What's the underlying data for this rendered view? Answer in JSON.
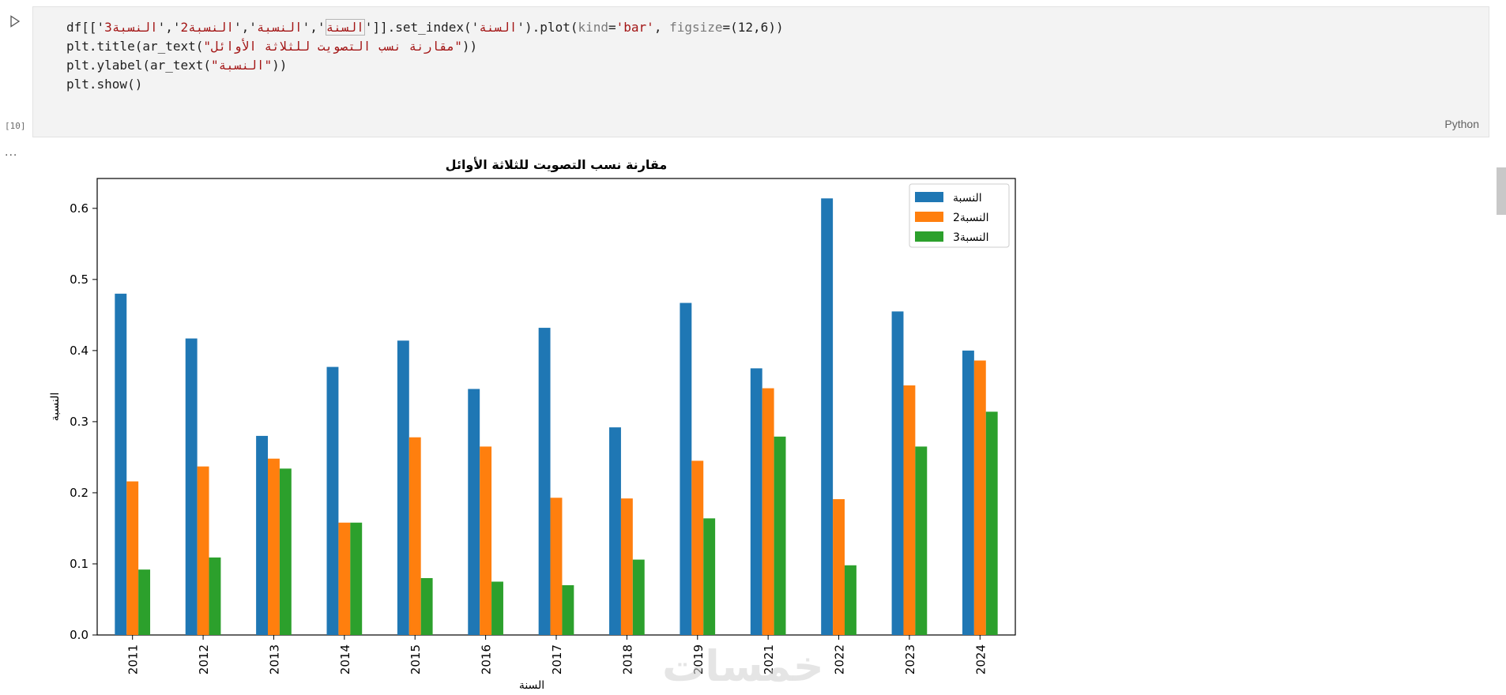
{
  "cell": {
    "execution_count": "[10]",
    "language": "Python",
    "output_more": "...",
    "code": {
      "l1_a": "df[['",
      "l1_s1": "السنة",
      "l1_b": "','",
      "l1_s2": "النسبة",
      "l1_c": "','",
      "l1_s3": "النسبة2",
      "l1_d": "','",
      "l1_s4": "النسبة3",
      "l1_e": "']].set_index('",
      "l1_s5": "السنة",
      "l1_f": "').plot(",
      "l1_k1": "kind",
      "l1_g": "=",
      "l1_s6": "'bar'",
      "l1_h": ", ",
      "l1_k2": "figsize",
      "l1_i": "=(12,6))",
      "l2_a": "plt.title(ar_text(",
      "l2_s": "\"مقارنة نسب التصويت للثلاثة الأوائل\"",
      "l2_b": "))",
      "l3_a": "plt.ylabel(ar_text(",
      "l3_s": "\"النسبة\"",
      "l3_b": "))",
      "l4": "plt.show()"
    }
  },
  "watermark": "خمسات",
  "chart_data": {
    "type": "bar",
    "title": "مقارنة نسب التصويت للثلاثة الأوائل",
    "xlabel": "السنة",
    "ylabel": "النسبة",
    "categories": [
      "2011",
      "2012",
      "2013",
      "2014",
      "2015",
      "2016",
      "2017",
      "2018",
      "2019",
      "2021",
      "2022",
      "2023",
      "2024"
    ],
    "series": [
      {
        "name": "النسبة",
        "color": "#1f77b4",
        "values": [
          0.48,
          0.417,
          0.28,
          0.377,
          0.414,
          0.346,
          0.432,
          0.292,
          0.467,
          0.375,
          0.614,
          0.455,
          0.4
        ]
      },
      {
        "name": "النسبة2",
        "color": "#ff7f0e",
        "values": [
          0.216,
          0.237,
          0.248,
          0.158,
          0.278,
          0.265,
          0.193,
          0.192,
          0.245,
          0.347,
          0.191,
          0.351,
          0.386
        ]
      },
      {
        "name": "النسبة3",
        "color": "#2ca02c",
        "values": [
          0.092,
          0.109,
          0.234,
          0.158,
          0.08,
          0.075,
          0.07,
          0.106,
          0.164,
          0.279,
          0.098,
          0.265,
          0.314
        ]
      }
    ],
    "ylim": [
      0,
      0.642
    ],
    "yticks": [
      "0.0",
      "0.1",
      "0.2",
      "0.3",
      "0.4",
      "0.5",
      "0.6"
    ],
    "ytick_values": [
      0,
      0.1,
      0.2,
      0.3,
      0.4,
      0.5,
      0.6
    ],
    "grid": false,
    "legend": "top-right"
  }
}
